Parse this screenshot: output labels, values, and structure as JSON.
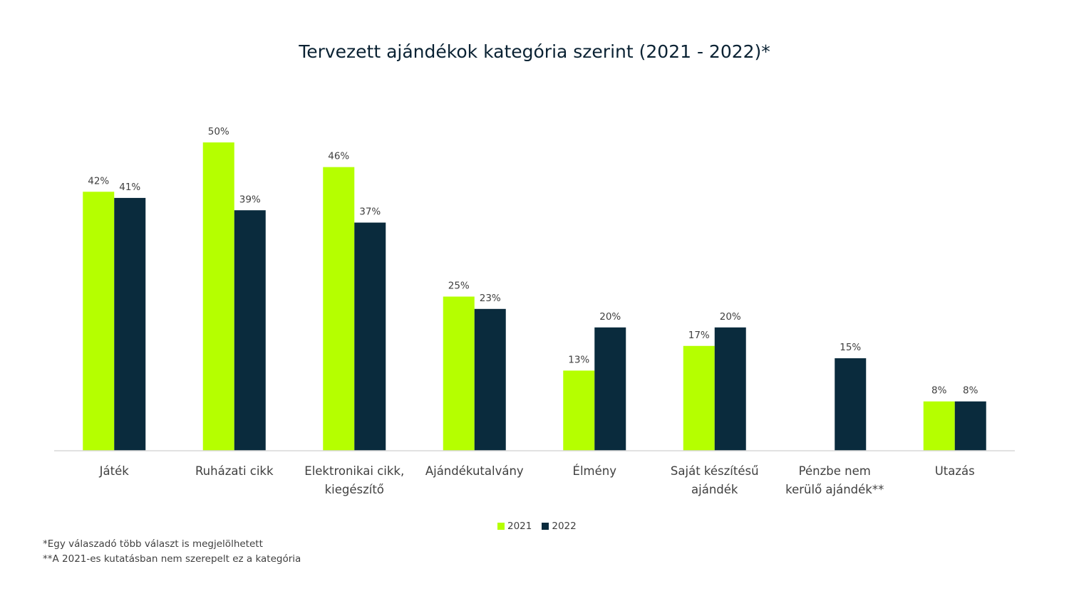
{
  "chart_data": {
    "type": "bar",
    "title": "Tervezett ajándékok kategória szerint (2021 - 2022)*",
    "xlabel": "",
    "ylabel": "",
    "ylim": [
      0,
      50
    ],
    "grid": false,
    "legend_position": "bottom-center",
    "categories": [
      [
        "Játék"
      ],
      [
        "Ruházati cikk"
      ],
      [
        "Elektronikai cikk,",
        "kiegészítő"
      ],
      [
        "Ajándékutalvány"
      ],
      [
        "Élmény"
      ],
      [
        "Saját készítésű",
        "ajándék"
      ],
      [
        "Pénzbe nem",
        "kerülő ajándék**"
      ],
      [
        "Utazás"
      ]
    ],
    "series": [
      {
        "name": "2021",
        "color": "#b5ff00",
        "values": [
          42,
          50,
          46,
          25,
          13,
          17,
          null,
          8
        ]
      },
      {
        "name": "2022",
        "color": "#0a2b3d",
        "values": [
          41,
          39,
          37,
          23,
          20,
          20,
          15,
          8
        ]
      }
    ],
    "value_suffix": "%"
  },
  "footnotes": [
    "*Egy válaszadó több választ is megjelölhetett",
    "**A 2021-es kutatásban nem szerepelt ez a kategória"
  ]
}
